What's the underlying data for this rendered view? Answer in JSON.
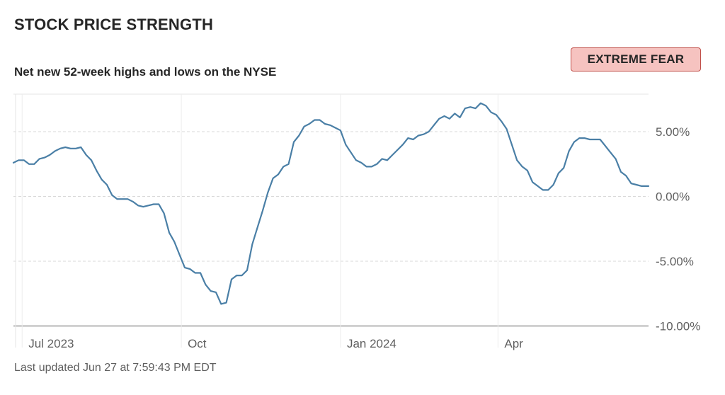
{
  "header": {
    "title": "STOCK PRICE STRENGTH",
    "subtitle": "Net new 52-week highs and lows on the NYSE",
    "badge": "EXTREME FEAR",
    "badge_color": "#f6c3c0",
    "badge_border_color": "#c0504a"
  },
  "footer": {
    "last_updated": "Last updated Jun 27 at 7:59:43 PM EDT"
  },
  "chart_data": {
    "type": "line",
    "title": "STOCK PRICE STRENGTH",
    "subtitle": "Net new 52-week highs and lows on the NYSE",
    "xlabel": "",
    "ylabel": "",
    "x_range": [
      "2023-06-26",
      "2024-06-27"
    ],
    "ylim": [
      -10,
      8
    ],
    "y_ticks": [
      5,
      0,
      -5,
      -10
    ],
    "y_tick_labels": [
      "5.00%",
      "0.00%",
      "-5.00%",
      "-10.00%"
    ],
    "x_ticks": [
      "2023-07-01",
      "2023-10-01",
      "2024-01-01",
      "2024-04-01"
    ],
    "x_tick_labels": [
      "Jul 2023",
      "Oct",
      "Jan 2024",
      "Apr"
    ],
    "grid": true,
    "line_color": "#4a7fa6",
    "series": [
      {
        "points": [
          [
            "2023-06-26",
            2.6
          ],
          [
            "2023-06-29",
            2.8
          ],
          [
            "2023-07-02",
            2.8
          ],
          [
            "2023-07-05",
            2.5
          ],
          [
            "2023-07-08",
            2.5
          ],
          [
            "2023-07-11",
            2.9
          ],
          [
            "2023-07-14",
            3.0
          ],
          [
            "2023-07-17",
            3.2
          ],
          [
            "2023-07-20",
            3.5
          ],
          [
            "2023-07-23",
            3.7
          ],
          [
            "2023-07-26",
            3.8
          ],
          [
            "2023-07-29",
            3.7
          ],
          [
            "2023-08-01",
            3.7
          ],
          [
            "2023-08-04",
            3.8
          ],
          [
            "2023-08-07",
            3.2
          ],
          [
            "2023-08-10",
            2.8
          ],
          [
            "2023-08-13",
            2.0
          ],
          [
            "2023-08-16",
            1.3
          ],
          [
            "2023-08-19",
            0.9
          ],
          [
            "2023-08-22",
            0.1
          ],
          [
            "2023-08-25",
            -0.2
          ],
          [
            "2023-08-28",
            -0.2
          ],
          [
            "2023-08-31",
            -0.2
          ],
          [
            "2023-09-03",
            -0.4
          ],
          [
            "2023-09-06",
            -0.7
          ],
          [
            "2023-09-09",
            -0.8
          ],
          [
            "2023-09-12",
            -0.7
          ],
          [
            "2023-09-15",
            -0.6
          ],
          [
            "2023-09-18",
            -0.6
          ],
          [
            "2023-09-21",
            -1.3
          ],
          [
            "2023-09-24",
            -2.8
          ],
          [
            "2023-09-27",
            -3.5
          ],
          [
            "2023-09-30",
            -4.5
          ],
          [
            "2023-10-03",
            -5.5
          ],
          [
            "2023-10-06",
            -5.6
          ],
          [
            "2023-10-09",
            -5.9
          ],
          [
            "2023-10-12",
            -5.9
          ],
          [
            "2023-10-15",
            -6.8
          ],
          [
            "2023-10-18",
            -7.3
          ],
          [
            "2023-10-21",
            -7.4
          ],
          [
            "2023-10-24",
            -8.3
          ],
          [
            "2023-10-27",
            -8.2
          ],
          [
            "2023-10-30",
            -6.4
          ],
          [
            "2023-11-02",
            -6.1
          ],
          [
            "2023-11-05",
            -6.1
          ],
          [
            "2023-11-08",
            -5.7
          ],
          [
            "2023-11-11",
            -3.7
          ],
          [
            "2023-11-14",
            -2.4
          ],
          [
            "2023-11-17",
            -1.1
          ],
          [
            "2023-11-20",
            0.3
          ],
          [
            "2023-11-23",
            1.4
          ],
          [
            "2023-11-26",
            1.7
          ],
          [
            "2023-11-29",
            2.3
          ],
          [
            "2023-12-02",
            2.5
          ],
          [
            "2023-12-05",
            4.2
          ],
          [
            "2023-12-08",
            4.7
          ],
          [
            "2023-12-11",
            5.4
          ],
          [
            "2023-12-14",
            5.6
          ],
          [
            "2023-12-17",
            5.9
          ],
          [
            "2023-12-20",
            5.9
          ],
          [
            "2023-12-23",
            5.6
          ],
          [
            "2023-12-26",
            5.5
          ],
          [
            "2023-12-29",
            5.3
          ],
          [
            "2024-01-01",
            5.1
          ],
          [
            "2024-01-04",
            4.0
          ],
          [
            "2024-01-07",
            3.4
          ],
          [
            "2024-01-10",
            2.8
          ],
          [
            "2024-01-13",
            2.6
          ],
          [
            "2024-01-16",
            2.3
          ],
          [
            "2024-01-19",
            2.3
          ],
          [
            "2024-01-22",
            2.5
          ],
          [
            "2024-01-25",
            2.9
          ],
          [
            "2024-01-28",
            2.8
          ],
          [
            "2024-01-31",
            3.2
          ],
          [
            "2024-02-03",
            3.6
          ],
          [
            "2024-02-06",
            4.0
          ],
          [
            "2024-02-09",
            4.5
          ],
          [
            "2024-02-12",
            4.4
          ],
          [
            "2024-02-15",
            4.7
          ],
          [
            "2024-02-18",
            4.8
          ],
          [
            "2024-02-21",
            5.0
          ],
          [
            "2024-02-24",
            5.5
          ],
          [
            "2024-02-27",
            6.0
          ],
          [
            "2024-03-01",
            6.2
          ],
          [
            "2024-03-04",
            6.0
          ],
          [
            "2024-03-07",
            6.4
          ],
          [
            "2024-03-10",
            6.1
          ],
          [
            "2024-03-13",
            6.8
          ],
          [
            "2024-03-16",
            6.9
          ],
          [
            "2024-03-19",
            6.8
          ],
          [
            "2024-03-22",
            7.2
          ],
          [
            "2024-03-25",
            7.0
          ],
          [
            "2024-03-28",
            6.5
          ],
          [
            "2024-03-31",
            6.3
          ],
          [
            "2024-04-03",
            5.8
          ],
          [
            "2024-04-06",
            5.2
          ],
          [
            "2024-04-09",
            4.0
          ],
          [
            "2024-04-12",
            2.8
          ],
          [
            "2024-04-15",
            2.3
          ],
          [
            "2024-04-18",
            2.0
          ],
          [
            "2024-04-21",
            1.1
          ],
          [
            "2024-04-24",
            0.8
          ],
          [
            "2024-04-27",
            0.5
          ],
          [
            "2024-04-30",
            0.5
          ],
          [
            "2024-05-03",
            0.9
          ],
          [
            "2024-05-06",
            1.8
          ],
          [
            "2024-05-09",
            2.2
          ],
          [
            "2024-05-12",
            3.5
          ],
          [
            "2024-05-15",
            4.2
          ],
          [
            "2024-05-18",
            4.5
          ],
          [
            "2024-05-21",
            4.5
          ],
          [
            "2024-05-24",
            4.4
          ],
          [
            "2024-05-27",
            4.4
          ],
          [
            "2024-05-30",
            4.4
          ],
          [
            "2024-06-02",
            3.9
          ],
          [
            "2024-06-05",
            3.4
          ],
          [
            "2024-06-08",
            2.9
          ],
          [
            "2024-06-11",
            1.9
          ],
          [
            "2024-06-14",
            1.6
          ],
          [
            "2024-06-17",
            1.0
          ],
          [
            "2024-06-20",
            0.9
          ],
          [
            "2024-06-23",
            0.8
          ],
          [
            "2024-06-27",
            0.8
          ]
        ]
      }
    ]
  }
}
